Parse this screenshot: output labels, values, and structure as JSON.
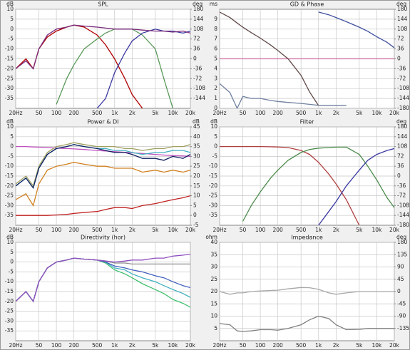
{
  "chart_data": [
    {
      "type": "line",
      "title": "SPL",
      "ylabel": "dB",
      "y2label": "deg",
      "xscale": "log",
      "grid": true,
      "x": [
        20,
        30,
        40,
        50,
        70,
        100,
        150,
        200,
        300,
        500,
        700,
        1000,
        1500,
        2000,
        3000,
        5000,
        7000,
        10000,
        15000,
        20000
      ],
      "xlim": [
        20,
        20000
      ],
      "xticks": [
        {
          "value": 20,
          "label": "20Hz"
        },
        50,
        100,
        200,
        500,
        {
          "value": 1000,
          "label": "1k"
        },
        {
          "value": 2000,
          "label": "2k"
        },
        {
          "value": 5000,
          "label": "5k"
        },
        {
          "value": 10000,
          "label": "10k"
        },
        {
          "value": 20000,
          "label": "20k"
        }
      ],
      "ylim": [
        -40,
        10
      ],
      "yticks": [
        10,
        5,
        0,
        -5,
        -10,
        -15,
        -20,
        -25,
        -30,
        -35
      ],
      "y2lim": [
        -180,
        180
      ],
      "y2ticks": [
        180,
        144,
        108,
        72,
        36,
        0,
        -36,
        -72,
        -108,
        -144
      ],
      "series": [
        {
          "color": "#b00000",
          "values": [
            -20,
            -15,
            -20,
            -10,
            -4,
            -1,
            1,
            2,
            1,
            -3,
            -8,
            -15,
            -25,
            -33,
            -40,
            null,
            null,
            null,
            null,
            null
          ]
        },
        {
          "color": "#5a9a5a",
          "values": [
            null,
            null,
            null,
            null,
            null,
            -38,
            -25,
            -18,
            -10,
            -5,
            -2,
            0,
            0,
            0,
            -3,
            -10,
            -25,
            -40,
            null,
            null
          ]
        },
        {
          "color": "#3a3aa0",
          "values": [
            null,
            null,
            null,
            null,
            null,
            null,
            null,
            null,
            null,
            -40,
            -35,
            -22,
            -12,
            -6,
            -2,
            0,
            -1,
            -1,
            -2,
            -1
          ]
        },
        {
          "color": "#7a2a7a",
          "values": [
            -20,
            -16,
            -20,
            -10,
            -3,
            0,
            1,
            2,
            1.5,
            1,
            0.5,
            0,
            0,
            0,
            -0.5,
            -1,
            -1,
            -1.5,
            -1,
            -2
          ]
        }
      ]
    },
    {
      "type": "line",
      "title": "GD & Phase",
      "ylabel": "ms",
      "y2label": "deg",
      "xscale": "log",
      "grid": true,
      "x": [
        20,
        30,
        40,
        50,
        70,
        100,
        150,
        200,
        300,
        500,
        700,
        1000,
        1500,
        2000,
        3000,
        5000,
        7000,
        10000,
        15000,
        20000
      ],
      "xlim": [
        20,
        20000
      ],
      "xticks": [
        {
          "value": 20,
          "label": "20Hz"
        },
        50,
        100,
        200,
        500,
        {
          "value": 1000,
          "label": "1k"
        },
        {
          "value": 2000,
          "label": "2k"
        },
        {
          "value": 5000,
          "label": "5k"
        },
        {
          "value": 10000,
          "label": "10k"
        },
        {
          "value": 20000,
          "label": "20k"
        }
      ],
      "ylim": [
        0,
        10
      ],
      "yticks": [
        9,
        8,
        7,
        6,
        5,
        4,
        3,
        2,
        1,
        0
      ],
      "y2lim": [
        -180,
        180
      ],
      "y2ticks": [
        180,
        144,
        108,
        72,
        36,
        0,
        -36,
        -72,
        -108,
        -144,
        -180
      ],
      "series": [
        {
          "color": "#d070a0",
          "axis": "y2",
          "values": [
            0,
            0,
            0,
            0,
            0,
            0,
            0,
            0,
            0,
            0,
            0,
            0,
            0,
            0,
            0,
            0,
            0,
            0,
            0,
            0
          ]
        },
        {
          "color": "#604848",
          "axis": "y2",
          "values": [
            170,
            150,
            130,
            115,
            95,
            75,
            50,
            30,
            0,
            -60,
            -120,
            -170,
            null,
            null,
            null,
            null,
            null,
            null,
            null,
            null
          ]
        },
        {
          "color": "#4050a0",
          "axis": "y2",
          "values": [
            null,
            null,
            null,
            null,
            null,
            null,
            null,
            null,
            null,
            null,
            null,
            170,
            160,
            150,
            135,
            115,
            100,
            80,
            60,
            40
          ]
        },
        {
          "color": "#7080a0",
          "values": [
            2.5,
            1.6,
            0,
            1.2,
            1,
            1,
            0.8,
            0.7,
            0.6,
            0.5,
            0.4,
            0.3,
            0.3,
            0.3,
            0.3,
            null,
            null,
            null,
            null,
            null
          ]
        }
      ]
    },
    {
      "type": "line",
      "title": "Power & DI",
      "ylabel": "dB",
      "y2label": "dB",
      "xscale": "log",
      "grid": true,
      "x": [
        20,
        30,
        40,
        50,
        70,
        100,
        150,
        200,
        300,
        500,
        700,
        1000,
        1500,
        2000,
        3000,
        5000,
        7000,
        10000,
        15000,
        20000
      ],
      "xlim": [
        20,
        20000
      ],
      "xticks": [
        {
          "value": 20,
          "label": "20Hz"
        },
        50,
        100,
        200,
        500,
        {
          "value": 1000,
          "label": "1k"
        },
        {
          "value": 2000,
          "label": "2k"
        },
        {
          "value": 5000,
          "label": "5k"
        },
        {
          "value": 10000,
          "label": "10k"
        },
        {
          "value": 20000,
          "label": "20k"
        }
      ],
      "ylim": [
        -40,
        10
      ],
      "yticks": [
        10,
        5,
        0,
        -5,
        -10,
        -15,
        -20,
        -25,
        -30,
        -35
      ],
      "y2lim": [
        -5,
        45
      ],
      "y2ticks": [
        45,
        40,
        35,
        30,
        25,
        20,
        15,
        10,
        5,
        0,
        -5
      ],
      "series": [
        {
          "color": "#c050c0",
          "values": [
            0,
            0,
            -0.2,
            -0.3,
            -0.5,
            -0.8,
            -1,
            -1.2,
            -1.5,
            -2,
            -2.3,
            -2.6,
            -2.9,
            -3.2,
            -3.5,
            -4,
            -4.3,
            -4.6,
            -4.8,
            -5
          ]
        },
        {
          "color": "#a0a060",
          "values": [
            -19,
            -15,
            -20,
            -10,
            -3,
            0,
            1,
            2,
            1,
            0,
            0,
            0,
            -1,
            -1,
            -2,
            -1,
            -1,
            0,
            0,
            1
          ]
        },
        {
          "color": "#40b0c0",
          "values": [
            -20,
            -16,
            -21,
            -11,
            -4,
            -1,
            0,
            1,
            0,
            -1,
            -1,
            -2,
            -2,
            -3,
            -4,
            -3,
            -3,
            -2,
            -2,
            -3
          ]
        },
        {
          "color": "#102060",
          "values": [
            -20,
            -16,
            -21,
            -11,
            -4,
            -1,
            0,
            1,
            0,
            -1,
            -2,
            -3,
            -3,
            -4,
            -6,
            -6,
            -7,
            -5,
            -6,
            -4
          ]
        },
        {
          "color": "#d08020",
          "values": [
            -27,
            -24,
            -30,
            -19,
            -12,
            -10,
            -9,
            -8,
            -9,
            -10,
            -10,
            -11,
            -11,
            -11,
            -13,
            -12,
            -13,
            -12,
            -13,
            -12
          ]
        },
        {
          "color": "#c02020",
          "axis": "y2",
          "values": [
            0,
            0,
            0,
            0,
            0,
            0.2,
            0.5,
            1,
            1.5,
            2,
            3,
            4,
            4,
            3.5,
            5,
            6,
            7,
            8,
            9,
            10
          ]
        }
      ]
    },
    {
      "type": "line",
      "title": "Filter",
      "ylabel": "dB",
      "y2label": "deg",
      "xscale": "log",
      "grid": true,
      "x": [
        20,
        30,
        40,
        50,
        70,
        100,
        150,
        200,
        300,
        500,
        700,
        1000,
        1500,
        2000,
        3000,
        5000,
        7000,
        10000,
        15000,
        20000
      ],
      "xlim": [
        20,
        20000
      ],
      "xticks": [
        {
          "value": 20,
          "label": "20Hz"
        },
        50,
        100,
        200,
        500,
        {
          "value": 1000,
          "label": "1k"
        },
        {
          "value": 2000,
          "label": "2k"
        },
        {
          "value": 5000,
          "label": "5k"
        },
        {
          "value": 10000,
          "label": "10k"
        },
        {
          "value": 20000,
          "label": "20k"
        }
      ],
      "ylim": [
        -40,
        10
      ],
      "yticks": [
        10,
        5,
        0,
        -5,
        -10,
        -15,
        -20,
        -25,
        -30,
        -35
      ],
      "y2lim": [
        -180,
        180
      ],
      "y2ticks": [
        180,
        144,
        108,
        72,
        36,
        0,
        -36,
        -72,
        -108,
        -144,
        -180
      ],
      "series": [
        {
          "color": "#b04040",
          "values": [
            0,
            0,
            0,
            0,
            0,
            0,
            -0.1,
            -0.2,
            -0.5,
            -2,
            -4,
            -8,
            -14,
            -19,
            -27,
            -40,
            null,
            null,
            null,
            null
          ]
        },
        {
          "color": "#4a8a4a",
          "values": [
            null,
            null,
            null,
            -38,
            -30,
            -23,
            -16,
            -12,
            -7,
            -3,
            -1.5,
            -0.8,
            -0.5,
            -0.3,
            -0.3,
            -4,
            -10,
            -17,
            -26,
            -31
          ]
        },
        {
          "color": "#3a3aa0",
          "values": [
            null,
            null,
            null,
            null,
            null,
            null,
            null,
            null,
            null,
            null,
            null,
            -40,
            -33,
            -28,
            -20,
            -12,
            -7,
            -4,
            -2,
            -1
          ]
        }
      ]
    },
    {
      "type": "line",
      "title": "Directivity (hor)",
      "ylabel": "dB",
      "xscale": "log",
      "grid": true,
      "x": [
        20,
        30,
        40,
        50,
        70,
        100,
        150,
        200,
        300,
        500,
        700,
        1000,
        1500,
        2000,
        3000,
        5000,
        7000,
        10000,
        15000,
        20000
      ],
      "xlim": [
        20,
        20000
      ],
      "xticks": [
        {
          "value": 20,
          "label": "20Hz"
        },
        50,
        100,
        200,
        500,
        {
          "value": 1000,
          "label": "1k"
        },
        {
          "value": 2000,
          "label": "2k"
        },
        {
          "value": 5000,
          "label": "5k"
        },
        {
          "value": 10000,
          "label": "10k"
        },
        {
          "value": 20000,
          "label": "20k"
        }
      ],
      "ylim": [
        -40,
        10
      ],
      "yticks": [
        10,
        5,
        0,
        -5,
        -10,
        -15,
        -20,
        -25,
        -30,
        -35
      ],
      "series": [
        {
          "color": "#40c070",
          "values": [
            -20,
            -15,
            -20,
            -10,
            -3,
            0,
            1,
            2,
            1.5,
            1,
            -0.5,
            -4,
            -6,
            -8,
            -11,
            -14,
            -16,
            -19,
            -21,
            -23
          ]
        },
        {
          "color": "#40b0c0",
          "values": [
            -20,
            -15,
            -20,
            -10,
            -3,
            0,
            1,
            2,
            1.5,
            1,
            0,
            -3,
            -4,
            -6,
            -8,
            -10,
            -12,
            -14,
            -16,
            -18
          ]
        },
        {
          "color": "#4060c0",
          "values": [
            -20,
            -15,
            -20,
            -10,
            -3,
            0,
            1,
            2,
            1.5,
            1,
            0,
            -2,
            -3,
            -4,
            -5,
            -7,
            -8,
            -10,
            -12,
            -13
          ]
        },
        {
          "color": "#909090",
          "values": [
            -20,
            -15,
            -20,
            -10,
            -3,
            0,
            1,
            2,
            1.5,
            1,
            0.5,
            -0.5,
            -0.5,
            -1,
            -1,
            -1,
            -1,
            -1,
            -1,
            -1
          ]
        },
        {
          "color": "#9050c0",
          "values": [
            -20,
            -15,
            -20,
            -10,
            -3,
            0,
            1,
            2,
            1.5,
            1,
            0.5,
            0,
            0.5,
            1,
            1,
            2,
            2,
            3,
            3.5,
            4
          ]
        }
      ]
    },
    {
      "type": "line",
      "title": "Impedance",
      "ylabel": "ohm",
      "y2label": "deg",
      "xscale": "log",
      "grid": true,
      "x": [
        20,
        30,
        40,
        50,
        70,
        100,
        150,
        200,
        300,
        500,
        700,
        1000,
        1500,
        2000,
        3000,
        5000,
        7000,
        10000,
        15000,
        20000
      ],
      "xlim": [
        20,
        20000
      ],
      "xticks": [
        {
          "value": 20,
          "label": "20Hz"
        },
        50,
        100,
        200,
        500,
        {
          "value": 1000,
          "label": "1k"
        },
        {
          "value": 2000,
          "label": "2k"
        },
        {
          "value": 5000,
          "label": "5k"
        },
        {
          "value": 10000,
          "label": "10k"
        },
        {
          "value": 20000,
          "label": "20k"
        }
      ],
      "ylim": [
        0,
        40
      ],
      "yticks": [
        40,
        35,
        30,
        25,
        20,
        15,
        10,
        5
      ],
      "y2lim": [
        -180,
        180
      ],
      "y2ticks": [
        180,
        135,
        90,
        45,
        0,
        -45,
        -90,
        -135
      ],
      "series": [
        {
          "color": "#a8a8a8",
          "axis": "y2",
          "values": [
            0,
            -10,
            -5,
            -5,
            0,
            2,
            4,
            5,
            10,
            15,
            14,
            8,
            -5,
            -10,
            -5,
            0,
            0,
            0,
            0,
            0
          ]
        },
        {
          "color": "#808080",
          "values": [
            7,
            6.5,
            4,
            3.8,
            4,
            4.5,
            4.5,
            4.3,
            5,
            6.5,
            8.5,
            10,
            9,
            6.5,
            4.5,
            4.6,
            5,
            5,
            5,
            5
          ]
        }
      ]
    }
  ]
}
